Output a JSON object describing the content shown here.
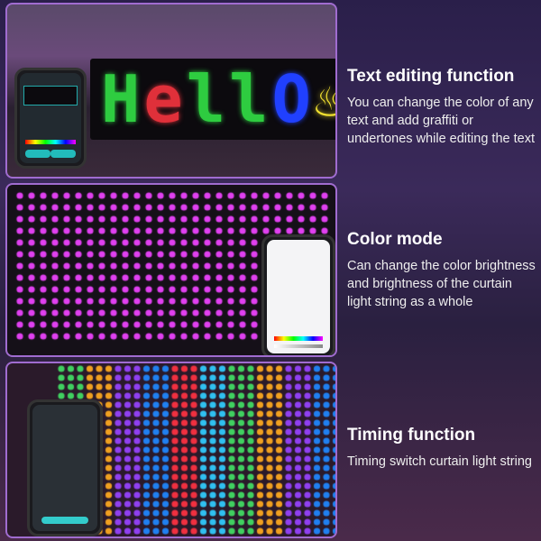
{
  "features": [
    {
      "title": "Text editing function",
      "description": "You can change the color of any text and add graffiti or undertones while editing the text"
    },
    {
      "title": "Color mode",
      "description": "Can change the color brightness and brightness of the curtain light string as a whole"
    },
    {
      "title": "Timing function",
      "description": "Timing switch curtain light string"
    }
  ],
  "led_sign": {
    "letters": [
      "H",
      "e",
      "l",
      "l",
      "O"
    ],
    "colors": [
      "#2ecc40",
      "#e0303a",
      "#2ecc40",
      "#2ecc40",
      "#2040ff"
    ]
  },
  "colors": {
    "border": "#a06cd0",
    "magenta_led": "#e040f0"
  }
}
